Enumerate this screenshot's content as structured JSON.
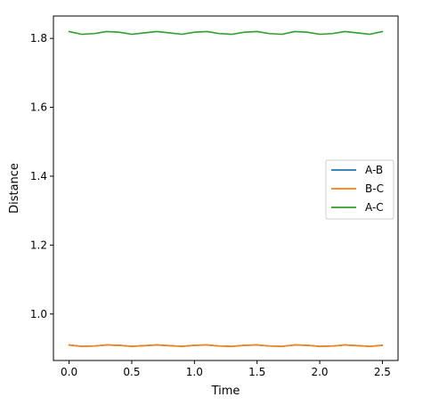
{
  "chart_data": {
    "type": "line",
    "title": "",
    "xlabel": "Time",
    "ylabel": "Distance",
    "xlim": [
      -0.125,
      2.625
    ],
    "ylim": [
      0.865,
      1.865
    ],
    "xticks": [
      0.0,
      0.5,
      1.0,
      1.5,
      2.0,
      2.5
    ],
    "xtick_labels": [
      "0.0",
      "0.5",
      "1.0",
      "1.5",
      "2.0",
      "2.5"
    ],
    "yticks": [
      1.0,
      1.2,
      1.4,
      1.6,
      1.8
    ],
    "ytick_labels": [
      "1.0",
      "1.2",
      "1.4",
      "1.6",
      "1.8"
    ],
    "grid": false,
    "legend": "center-right",
    "x": [
      0.0,
      0.1,
      0.2,
      0.3,
      0.4,
      0.5,
      0.6,
      0.7,
      0.8,
      0.9,
      1.0,
      1.1,
      1.2,
      1.3,
      1.4,
      1.5,
      1.6,
      1.7,
      1.8,
      1.9,
      2.0,
      2.1,
      2.2,
      2.3,
      2.4,
      2.5
    ],
    "series": [
      {
        "name": "A-B",
        "color": "#1f77b4",
        "values": [
          0.91,
          0.906,
          0.907,
          0.91,
          0.909,
          0.906,
          0.908,
          0.91,
          0.908,
          0.906,
          0.909,
          0.91,
          0.907,
          0.906,
          0.909,
          0.91,
          0.907,
          0.906,
          0.91,
          0.909,
          0.906,
          0.907,
          0.91,
          0.908,
          0.906,
          0.909
        ]
      },
      {
        "name": "B-C",
        "color": "#ff7f0e",
        "values": [
          0.91,
          0.906,
          0.907,
          0.91,
          0.909,
          0.906,
          0.908,
          0.91,
          0.908,
          0.906,
          0.909,
          0.91,
          0.907,
          0.906,
          0.909,
          0.91,
          0.907,
          0.906,
          0.91,
          0.909,
          0.906,
          0.907,
          0.91,
          0.908,
          0.906,
          0.909
        ]
      },
      {
        "name": "A-C",
        "color": "#2ca02c",
        "values": [
          1.82,
          1.812,
          1.814,
          1.82,
          1.818,
          1.812,
          1.816,
          1.82,
          1.816,
          1.812,
          1.818,
          1.82,
          1.814,
          1.812,
          1.818,
          1.82,
          1.814,
          1.812,
          1.82,
          1.818,
          1.812,
          1.814,
          1.82,
          1.816,
          1.812,
          1.82
        ]
      }
    ]
  }
}
